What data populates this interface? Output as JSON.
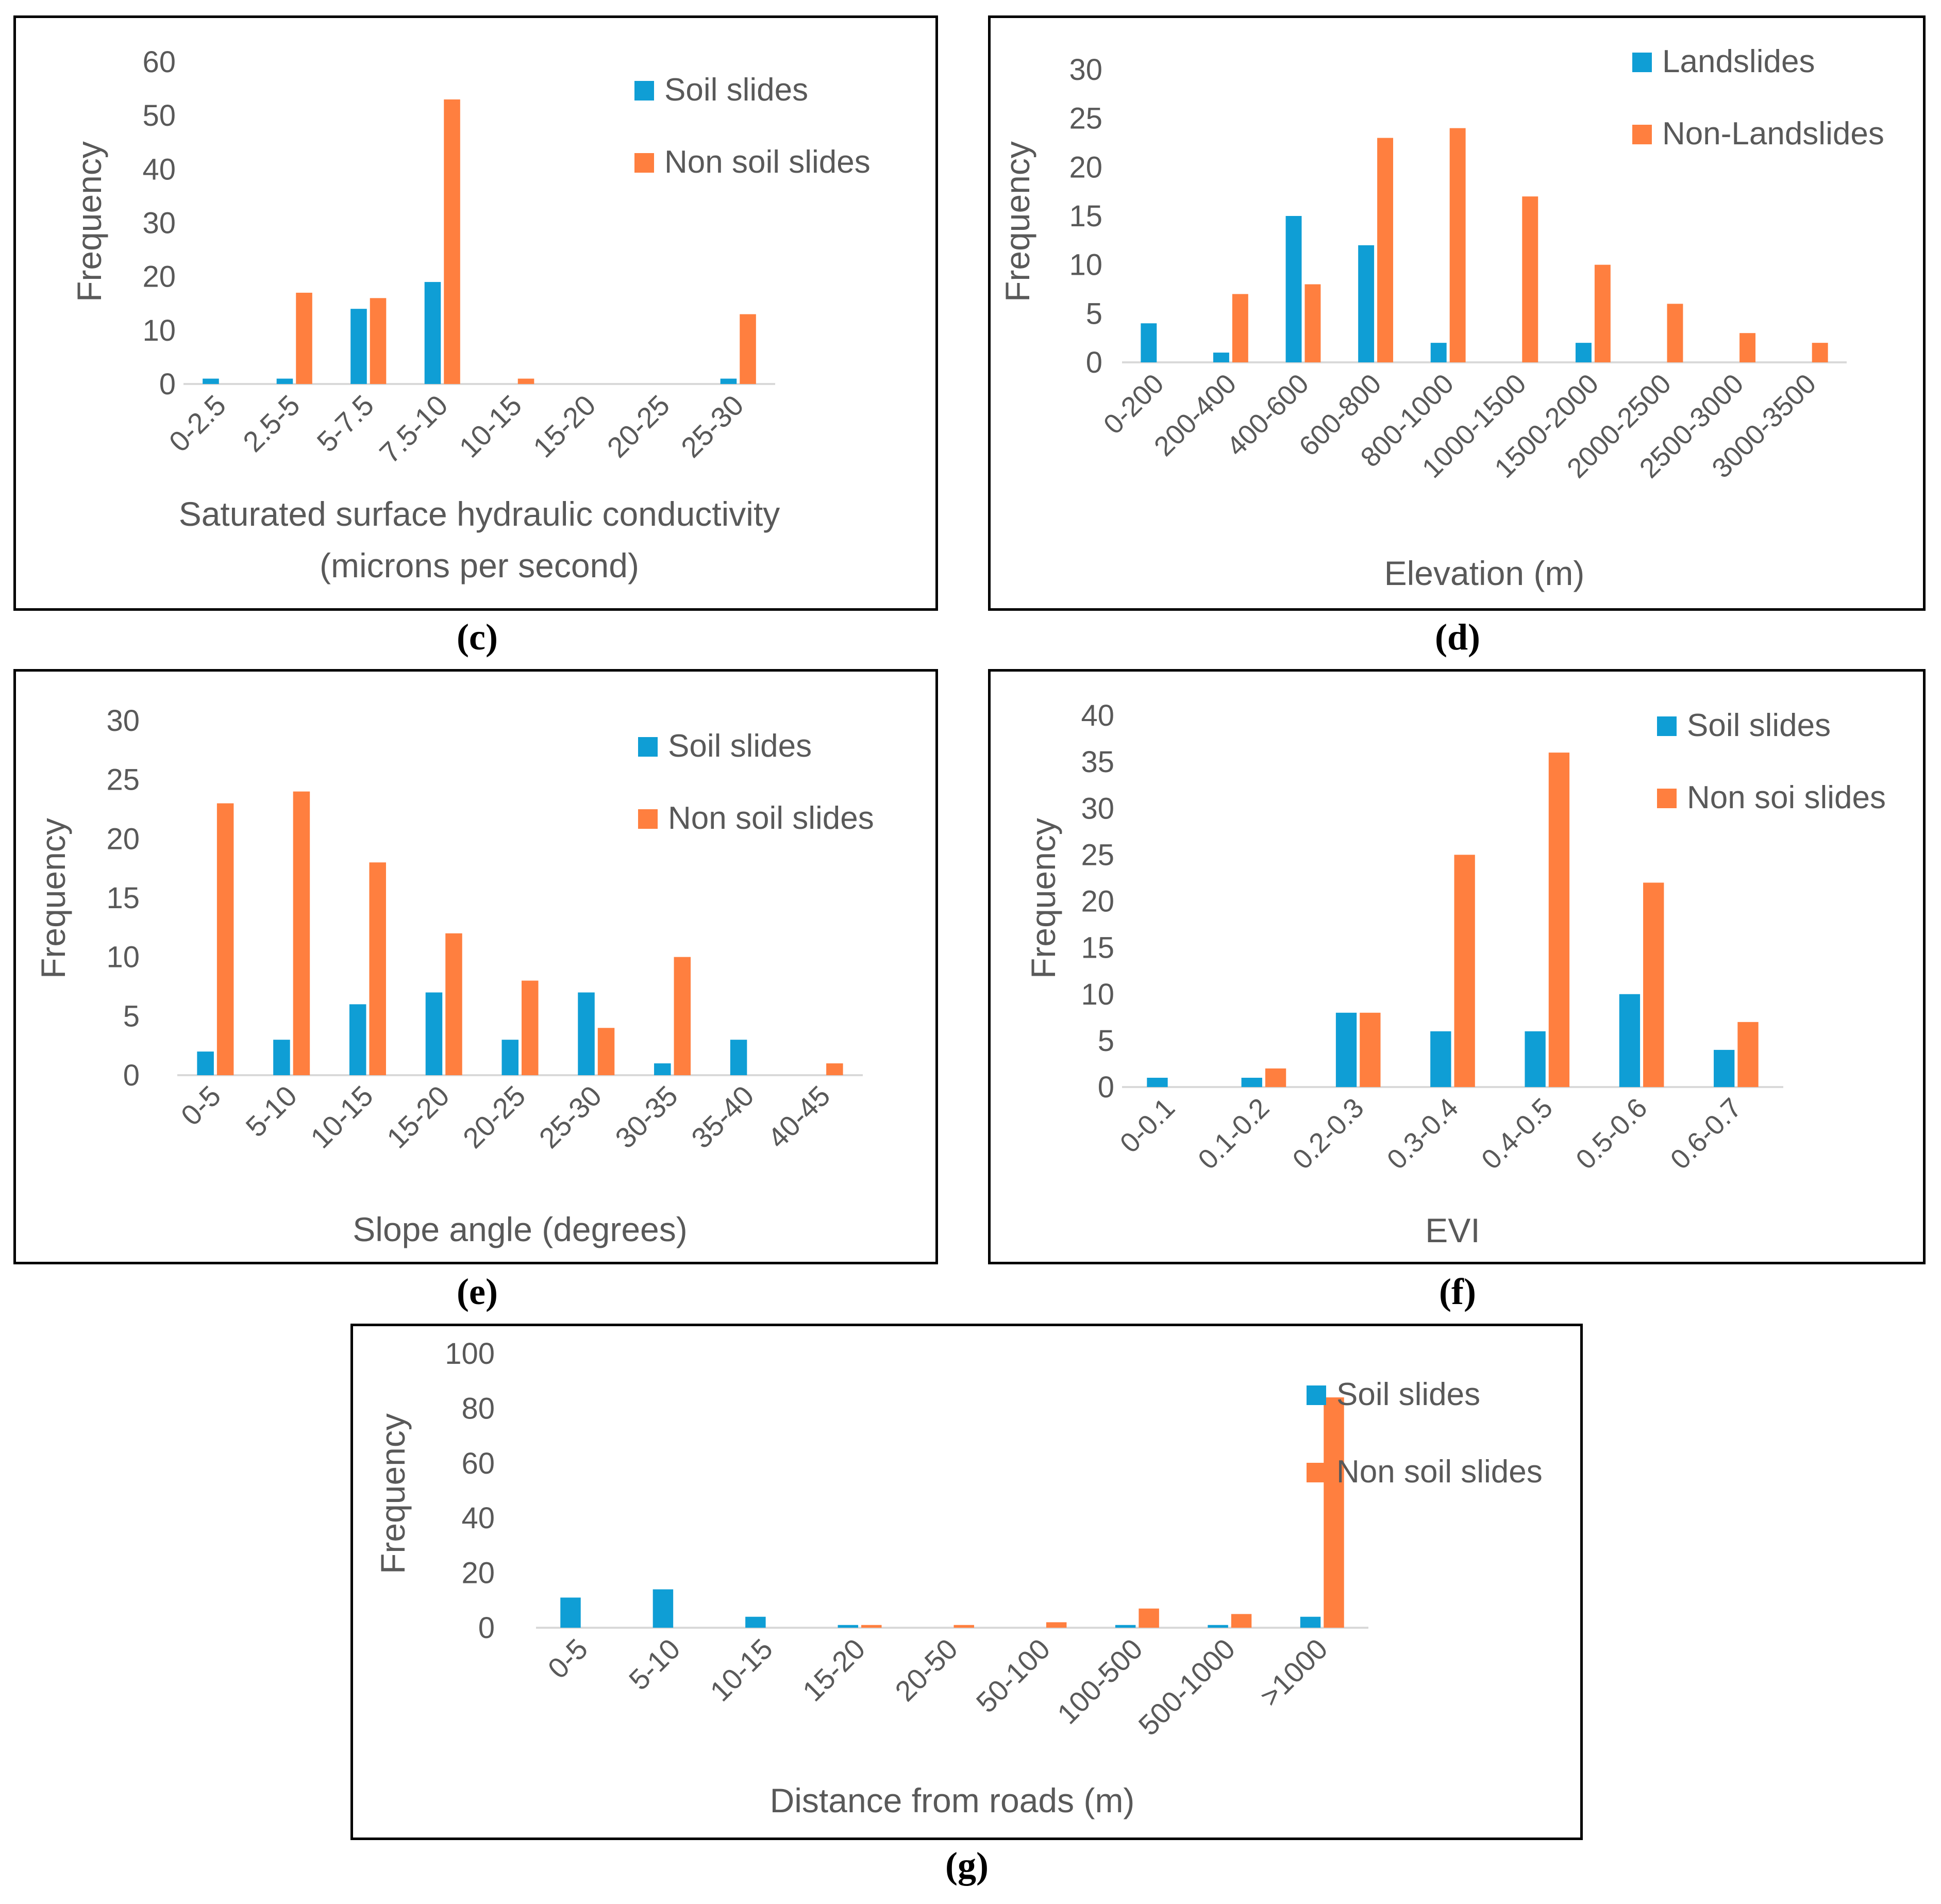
{
  "colors": {
    "primary": "#0F9ED5",
    "secondary": "#FF7F3F",
    "text": "#595959",
    "axis": "#D9D9D9"
  },
  "chart_data": [
    {
      "id": "c",
      "type": "bar",
      "caption_letter": "c",
      "categories": [
        "0-2.5",
        "2.5-5",
        "5-7.5",
        "7.5-10",
        "10-15",
        "15-20",
        "20-25",
        "25-30"
      ],
      "series": [
        {
          "name": "Soil slides",
          "values": [
            1,
            1,
            14,
            19,
            0,
            0,
            0,
            1
          ]
        },
        {
          "name": "Non soil slides",
          "values": [
            0,
            17,
            16,
            53,
            1,
            0,
            0,
            13
          ]
        }
      ],
      "ylabel": "Frequency",
      "xlabel_lines": [
        "Saturated surface hydraulic conductivity",
        "(microns per second)"
      ],
      "ylim": [
        0,
        60
      ],
      "yticks": [
        0,
        10,
        20,
        30,
        40,
        50,
        60
      ]
    },
    {
      "id": "d",
      "type": "bar",
      "caption_letter": "d",
      "categories": [
        "0-200",
        "200-400",
        "400-600",
        "600-800",
        "800-1000",
        "1000-1500",
        "1500-2000",
        "2000-2500",
        "2500-3000",
        "3000-3500"
      ],
      "series": [
        {
          "name": "Landslides",
          "values": [
            4,
            1,
            15,
            12,
            2,
            0,
            2,
            0,
            0,
            0
          ]
        },
        {
          "name": "Non-Landslides",
          "values": [
            0,
            7,
            8,
            23,
            24,
            17,
            10,
            6,
            3,
            2
          ]
        }
      ],
      "ylabel": "Frequency",
      "xlabel_lines": [
        "Elevation (m)"
      ],
      "ylim": [
        0,
        30
      ],
      "yticks": [
        0,
        5,
        10,
        15,
        20,
        25,
        30
      ]
    },
    {
      "id": "e",
      "type": "bar",
      "caption_letter": "e",
      "categories": [
        "0-5",
        "5-10",
        "10-15",
        "15-20",
        "20-25",
        "25-30",
        "30-35",
        "35-40",
        "40-45"
      ],
      "series": [
        {
          "name": "Soil slides",
          "values": [
            2,
            3,
            6,
            7,
            3,
            7,
            1,
            3,
            0
          ]
        },
        {
          "name": "Non soil slides",
          "values": [
            23,
            24,
            18,
            12,
            8,
            4,
            10,
            0,
            1
          ]
        }
      ],
      "ylabel": "Frequency",
      "xlabel_lines": [
        "Slope angle (degrees)"
      ],
      "ylim": [
        0,
        30
      ],
      "yticks": [
        0,
        5,
        10,
        15,
        20,
        25,
        30
      ]
    },
    {
      "id": "f",
      "type": "bar",
      "caption_letter": "f",
      "categories": [
        "0-0.1",
        "0.1-0.2",
        "0.2-0.3",
        "0.3-0.4",
        "0.4-0.5",
        "0.5-0.6",
        "0.6-0.7"
      ],
      "series": [
        {
          "name": "Soil slides",
          "values": [
            1,
            1,
            8,
            6,
            6,
            10,
            4
          ]
        },
        {
          "name": "Non soi slides",
          "values": [
            0,
            2,
            8,
            25,
            36,
            22,
            7
          ]
        }
      ],
      "ylabel": "Frequency",
      "xlabel_lines": [
        "EVI"
      ],
      "ylim": [
        0,
        40
      ],
      "yticks": [
        0,
        5,
        10,
        15,
        20,
        25,
        30,
        35,
        40
      ]
    },
    {
      "id": "g",
      "type": "bar",
      "caption_letter": "g",
      "categories": [
        "0-5",
        "5-10",
        "10-15",
        "15-20",
        "20-50",
        "50-100",
        "100-500",
        "500-1000",
        ">1000"
      ],
      "series": [
        {
          "name": "Soil slides",
          "values": [
            11,
            14,
            4,
            1,
            0,
            0,
            1,
            1,
            4
          ]
        },
        {
          "name": "Non soil slides",
          "values": [
            0,
            0,
            0,
            1,
            1,
            2,
            7,
            5,
            84
          ]
        }
      ],
      "ylabel": "Frequency",
      "xlabel_lines": [
        "Distance from roads (m)"
      ],
      "ylim": [
        0,
        100
      ],
      "yticks": [
        0,
        20,
        40,
        60,
        80,
        100
      ]
    }
  ]
}
